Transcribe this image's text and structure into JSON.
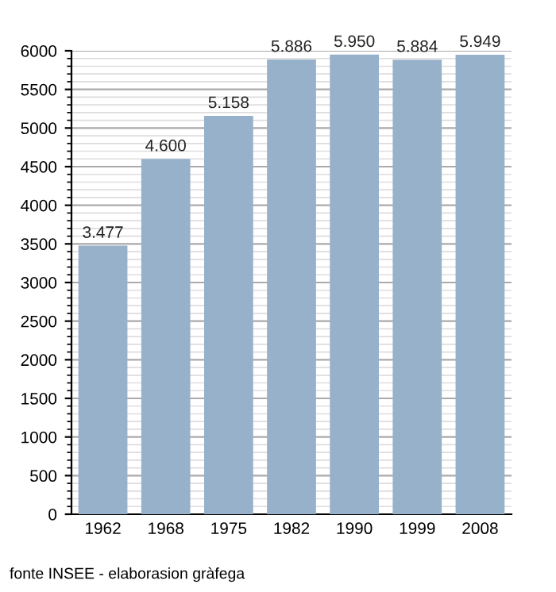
{
  "chart_data": {
    "type": "bar",
    "categories": [
      "1962",
      "1968",
      "1975",
      "1982",
      "1990",
      "1999",
      "2008"
    ],
    "values": [
      3477,
      4600,
      5158,
      5886,
      5950,
      5884,
      5949
    ],
    "value_labels": [
      "3.477",
      "4.600",
      "5.158",
      "5.886",
      "5.950",
      "5.884",
      "5.949"
    ],
    "color": "#97b1cb",
    "ylim": [
      0,
      6000
    ],
    "yticks": [
      0,
      500,
      1000,
      1500,
      2000,
      2500,
      3000,
      3500,
      4000,
      4500,
      5000,
      5500,
      6000
    ],
    "grid": "y",
    "annotations": [
      "fonte INSEE - elaborasion gràfega"
    ]
  }
}
